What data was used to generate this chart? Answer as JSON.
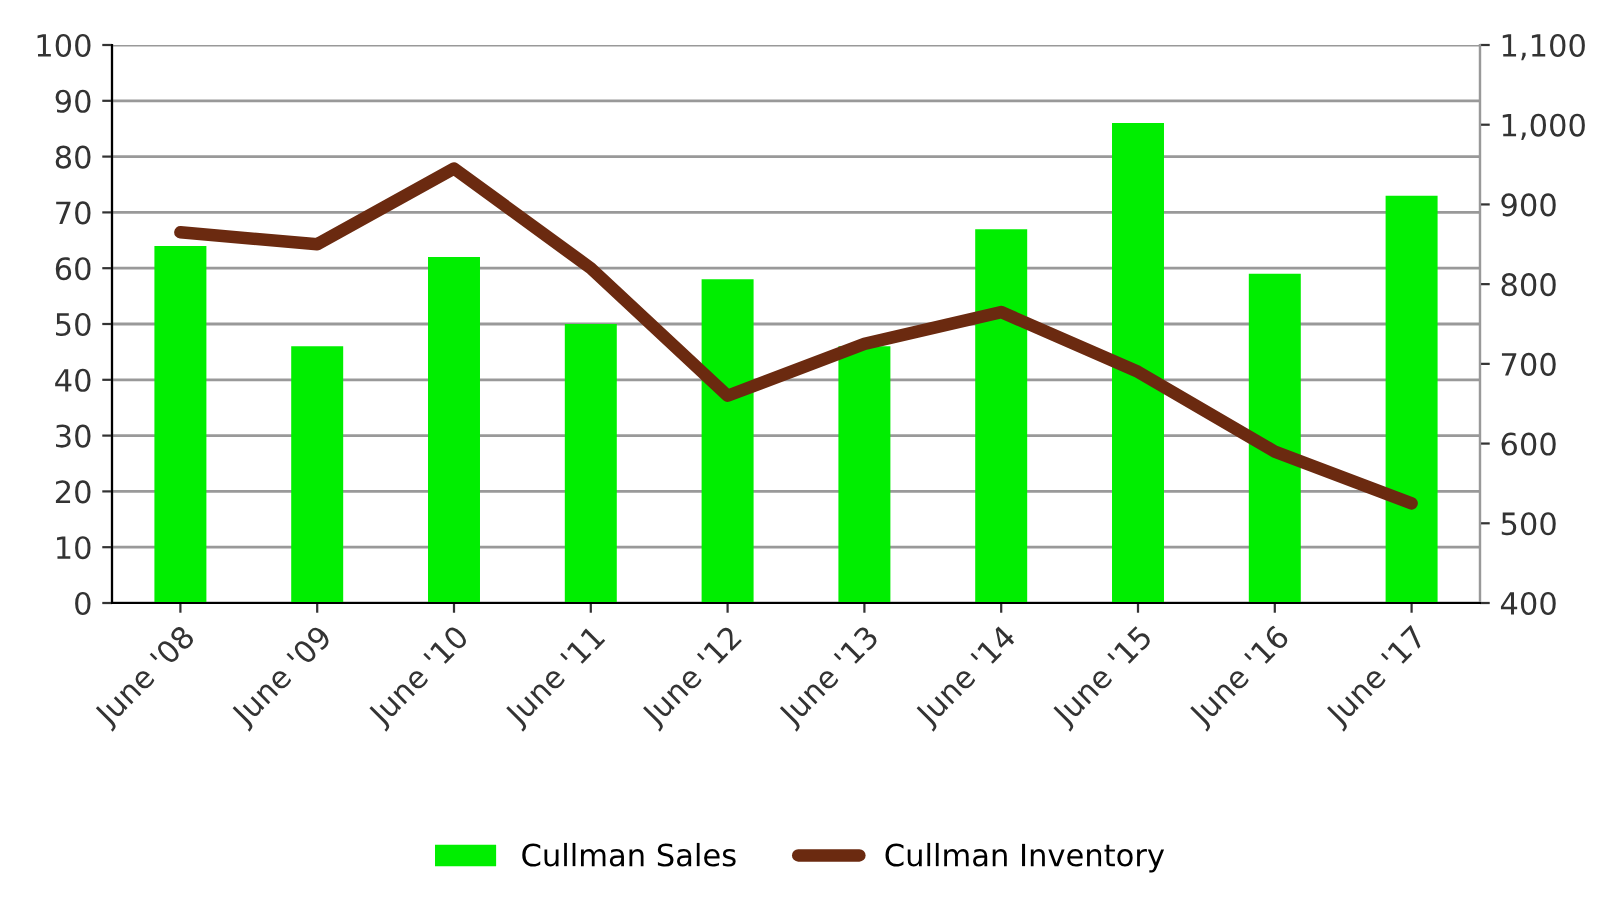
{
  "chart_data": {
    "type": "bar",
    "categories": [
      "June '08",
      "June '09",
      "June '10",
      "June '11",
      "June '12",
      "June '13",
      "June '14",
      "June '15",
      "June '16",
      "June '17"
    ],
    "series": [
      {
        "name": "Cullman Sales",
        "color": "#00ee00",
        "values": [
          64,
          46,
          62,
          50,
          58,
          46,
          67,
          86,
          59,
          73
        ]
      },
      {
        "name": "Cullman Inventory",
        "type": "line",
        "axis": "y2",
        "color": "#6b2a10",
        "values": [
          865,
          850,
          945,
          820,
          660,
          725,
          765,
          690,
          590,
          525
        ]
      }
    ],
    "ylim": [
      0,
      100
    ],
    "yticks": [
      0,
      10,
      20,
      30,
      40,
      50,
      60,
      70,
      80,
      90,
      100
    ],
    "y2lim": [
      400,
      1100
    ],
    "y2ticks": [
      {
        "value": 400,
        "label": "400"
      },
      {
        "value": 500,
        "label": "500"
      },
      {
        "value": 600,
        "label": "600"
      },
      {
        "value": 700,
        "label": "700"
      },
      {
        "value": 800,
        "label": "800"
      },
      {
        "value": 900,
        "label": "900"
      },
      {
        "value": 1000,
        "label": "1,000"
      },
      {
        "value": 1100,
        "label": "1,100"
      }
    ],
    "grid": "y",
    "legend": "bottom",
    "marker": "none"
  }
}
